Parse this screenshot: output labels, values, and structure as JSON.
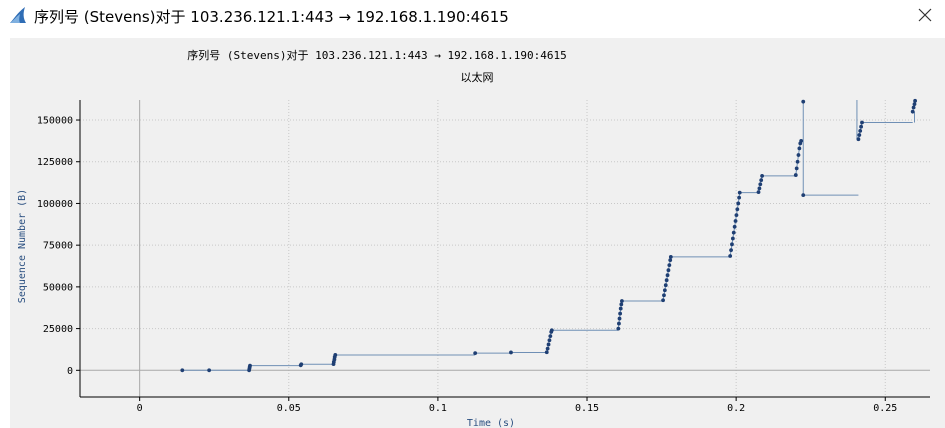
{
  "window": {
    "title": "序列号 (Stevens)对于 103.236.121.1:443 → 192.168.1.190:4615",
    "app_icon": "shark-fin-icon",
    "close_icon": "close-icon"
  },
  "chart_data": {
    "type": "scatter",
    "title": "序列号 (Stevens)对于 103.236.121.1:443 → 192.168.1.190:4615",
    "subtitle": "以太网",
    "xlabel": "Time (s)",
    "ylabel": "Sequence Number (B)",
    "xlim": [
      -0.02,
      0.265
    ],
    "ylim": [
      -16000,
      162000
    ],
    "xticks": [
      0,
      0.05,
      0.1,
      0.15,
      0.2,
      0.25
    ],
    "xtick_labels": [
      "0",
      "0.05",
      "0.1",
      "0.15",
      "0.2",
      "0.25"
    ],
    "yticks": [
      0,
      25000,
      50000,
      75000,
      100000,
      125000,
      150000
    ],
    "ytick_labels": [
      "0",
      "25000",
      "50000",
      "75000",
      "100000",
      "125000",
      "150000"
    ],
    "grid": true,
    "colors": {
      "points": "#1f3f73",
      "step_line": "#6f8fb5",
      "grid": "#c8c8c8",
      "zero_axis": "#a8a8a8"
    },
    "points": [
      [
        0.0143,
        0
      ],
      [
        0.0233,
        0
      ],
      [
        0.0367,
        0
      ],
      [
        0.0368,
        1000
      ],
      [
        0.0369,
        2000
      ],
      [
        0.037,
        2800
      ],
      [
        0.054,
        3000
      ],
      [
        0.0542,
        3600
      ],
      [
        0.065,
        3700
      ],
      [
        0.0651,
        5000
      ],
      [
        0.0653,
        6500
      ],
      [
        0.0654,
        8000
      ],
      [
        0.0656,
        9200
      ],
      [
        0.1125,
        10300
      ],
      [
        0.1245,
        10700
      ],
      [
        0.1365,
        10800
      ],
      [
        0.1368,
        13000
      ],
      [
        0.1371,
        15500
      ],
      [
        0.1374,
        18000
      ],
      [
        0.1377,
        20500
      ],
      [
        0.138,
        23000
      ],
      [
        0.1382,
        24000
      ],
      [
        0.1605,
        25000
      ],
      [
        0.1607,
        28000
      ],
      [
        0.1609,
        31000
      ],
      [
        0.1611,
        34000
      ],
      [
        0.1613,
        37000
      ],
      [
        0.1615,
        39500
      ],
      [
        0.1617,
        41500
      ],
      [
        0.1755,
        42000
      ],
      [
        0.1758,
        45000
      ],
      [
        0.1761,
        48000
      ],
      [
        0.1764,
        51000
      ],
      [
        0.1767,
        54000
      ],
      [
        0.177,
        57000
      ],
      [
        0.1773,
        60000
      ],
      [
        0.1776,
        63000
      ],
      [
        0.1779,
        66000
      ],
      [
        0.1781,
        68000
      ],
      [
        0.198,
        68500
      ],
      [
        0.1983,
        72000
      ],
      [
        0.1986,
        75500
      ],
      [
        0.1989,
        79000
      ],
      [
        0.1992,
        82500
      ],
      [
        0.1995,
        86000
      ],
      [
        0.1998,
        89500
      ],
      [
        0.2001,
        93000
      ],
      [
        0.2004,
        96500
      ],
      [
        0.2007,
        100000
      ],
      [
        0.201,
        103500
      ],
      [
        0.2012,
        106500
      ],
      [
        0.2075,
        106800
      ],
      [
        0.2078,
        109000
      ],
      [
        0.2081,
        111500
      ],
      [
        0.2084,
        114000
      ],
      [
        0.2087,
        116500
      ],
      [
        0.22,
        117000
      ],
      [
        0.2203,
        121000
      ],
      [
        0.2206,
        125000
      ],
      [
        0.2209,
        129000
      ],
      [
        0.2212,
        133000
      ],
      [
        0.2215,
        136000
      ],
      [
        0.2218,
        137500
      ],
      [
        0.2225,
        161000
      ],
      [
        0.2225,
        105000
      ],
      [
        0.241,
        138500
      ],
      [
        0.2413,
        141000
      ],
      [
        0.2416,
        143500
      ],
      [
        0.2419,
        146000
      ],
      [
        0.2422,
        148500
      ],
      [
        0.2592,
        155000
      ],
      [
        0.2595,
        157500
      ],
      [
        0.2598,
        159500
      ],
      [
        0.26,
        161500
      ]
    ]
  }
}
